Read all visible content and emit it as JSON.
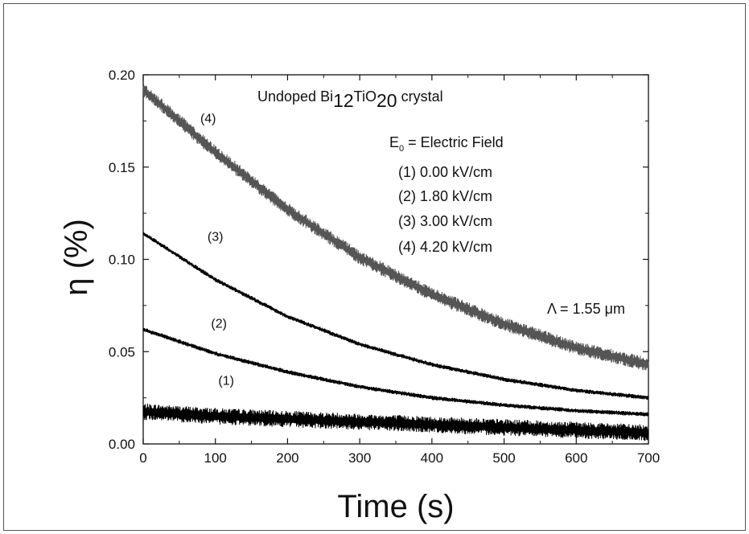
{
  "chart_data": {
    "type": "line",
    "xlabel": "Time (s)",
    "ylabel": "η (%)",
    "xlim": [
      0,
      700
    ],
    "ylim": [
      0.0,
      0.2
    ],
    "x_ticks": [
      "0",
      "100",
      "200",
      "300",
      "400",
      "500",
      "600",
      "700"
    ],
    "y_ticks": [
      "0.00",
      "0.05",
      "0.10",
      "0.15",
      "0.20"
    ],
    "grid": false,
    "title": {
      "prefix": "Undoped Bi",
      "sub1": "12",
      "mid": "TiO",
      "sub2": "20",
      "suffix": " crystal"
    },
    "legend": {
      "header_main": "E",
      "header_sub": "0",
      "header_rest": " = Electric Field",
      "entries": [
        "(1)  0.00 kV/cm",
        "(2)  1.80 kV/cm",
        "(3)  3.00 kV/cm",
        "(4)  4.20 kV/cm"
      ]
    },
    "wavelength_label": "Λ = 1.55 μm",
    "series": [
      {
        "name": "(1)",
        "label": "(1)",
        "label_at": [
          115,
          0.032
        ],
        "x": [
          0,
          100,
          200,
          300,
          400,
          500,
          600,
          700
        ],
        "y": [
          0.0175,
          0.015,
          0.0135,
          0.012,
          0.0105,
          0.009,
          0.0075,
          0.006
        ],
        "noise": 0.0045,
        "color": "#000000"
      },
      {
        "name": "(2)",
        "label": "(2)",
        "label_at": [
          105,
          0.063
        ],
        "x": [
          0,
          100,
          200,
          300,
          400,
          500,
          600,
          700
        ],
        "y": [
          0.062,
          0.049,
          0.039,
          0.031,
          0.025,
          0.021,
          0.018,
          0.016
        ],
        "noise": 0.0012,
        "color": "#000000"
      },
      {
        "name": "(3)",
        "label": "(3)",
        "label_at": [
          100,
          0.11
        ],
        "x": [
          0,
          100,
          200,
          300,
          400,
          500,
          600,
          700
        ],
        "y": [
          0.114,
          0.089,
          0.069,
          0.054,
          0.043,
          0.035,
          0.029,
          0.025
        ],
        "noise": 0.0012,
        "color": "#000000"
      },
      {
        "name": "(4)",
        "label": "(4)",
        "label_at": [
          90,
          0.174
        ],
        "x": [
          0,
          100,
          200,
          300,
          400,
          500,
          600,
          700
        ],
        "y": [
          0.192,
          0.158,
          0.127,
          0.101,
          0.081,
          0.065,
          0.052,
          0.043
        ],
        "noise": 0.0038,
        "color": "#555555"
      }
    ]
  }
}
